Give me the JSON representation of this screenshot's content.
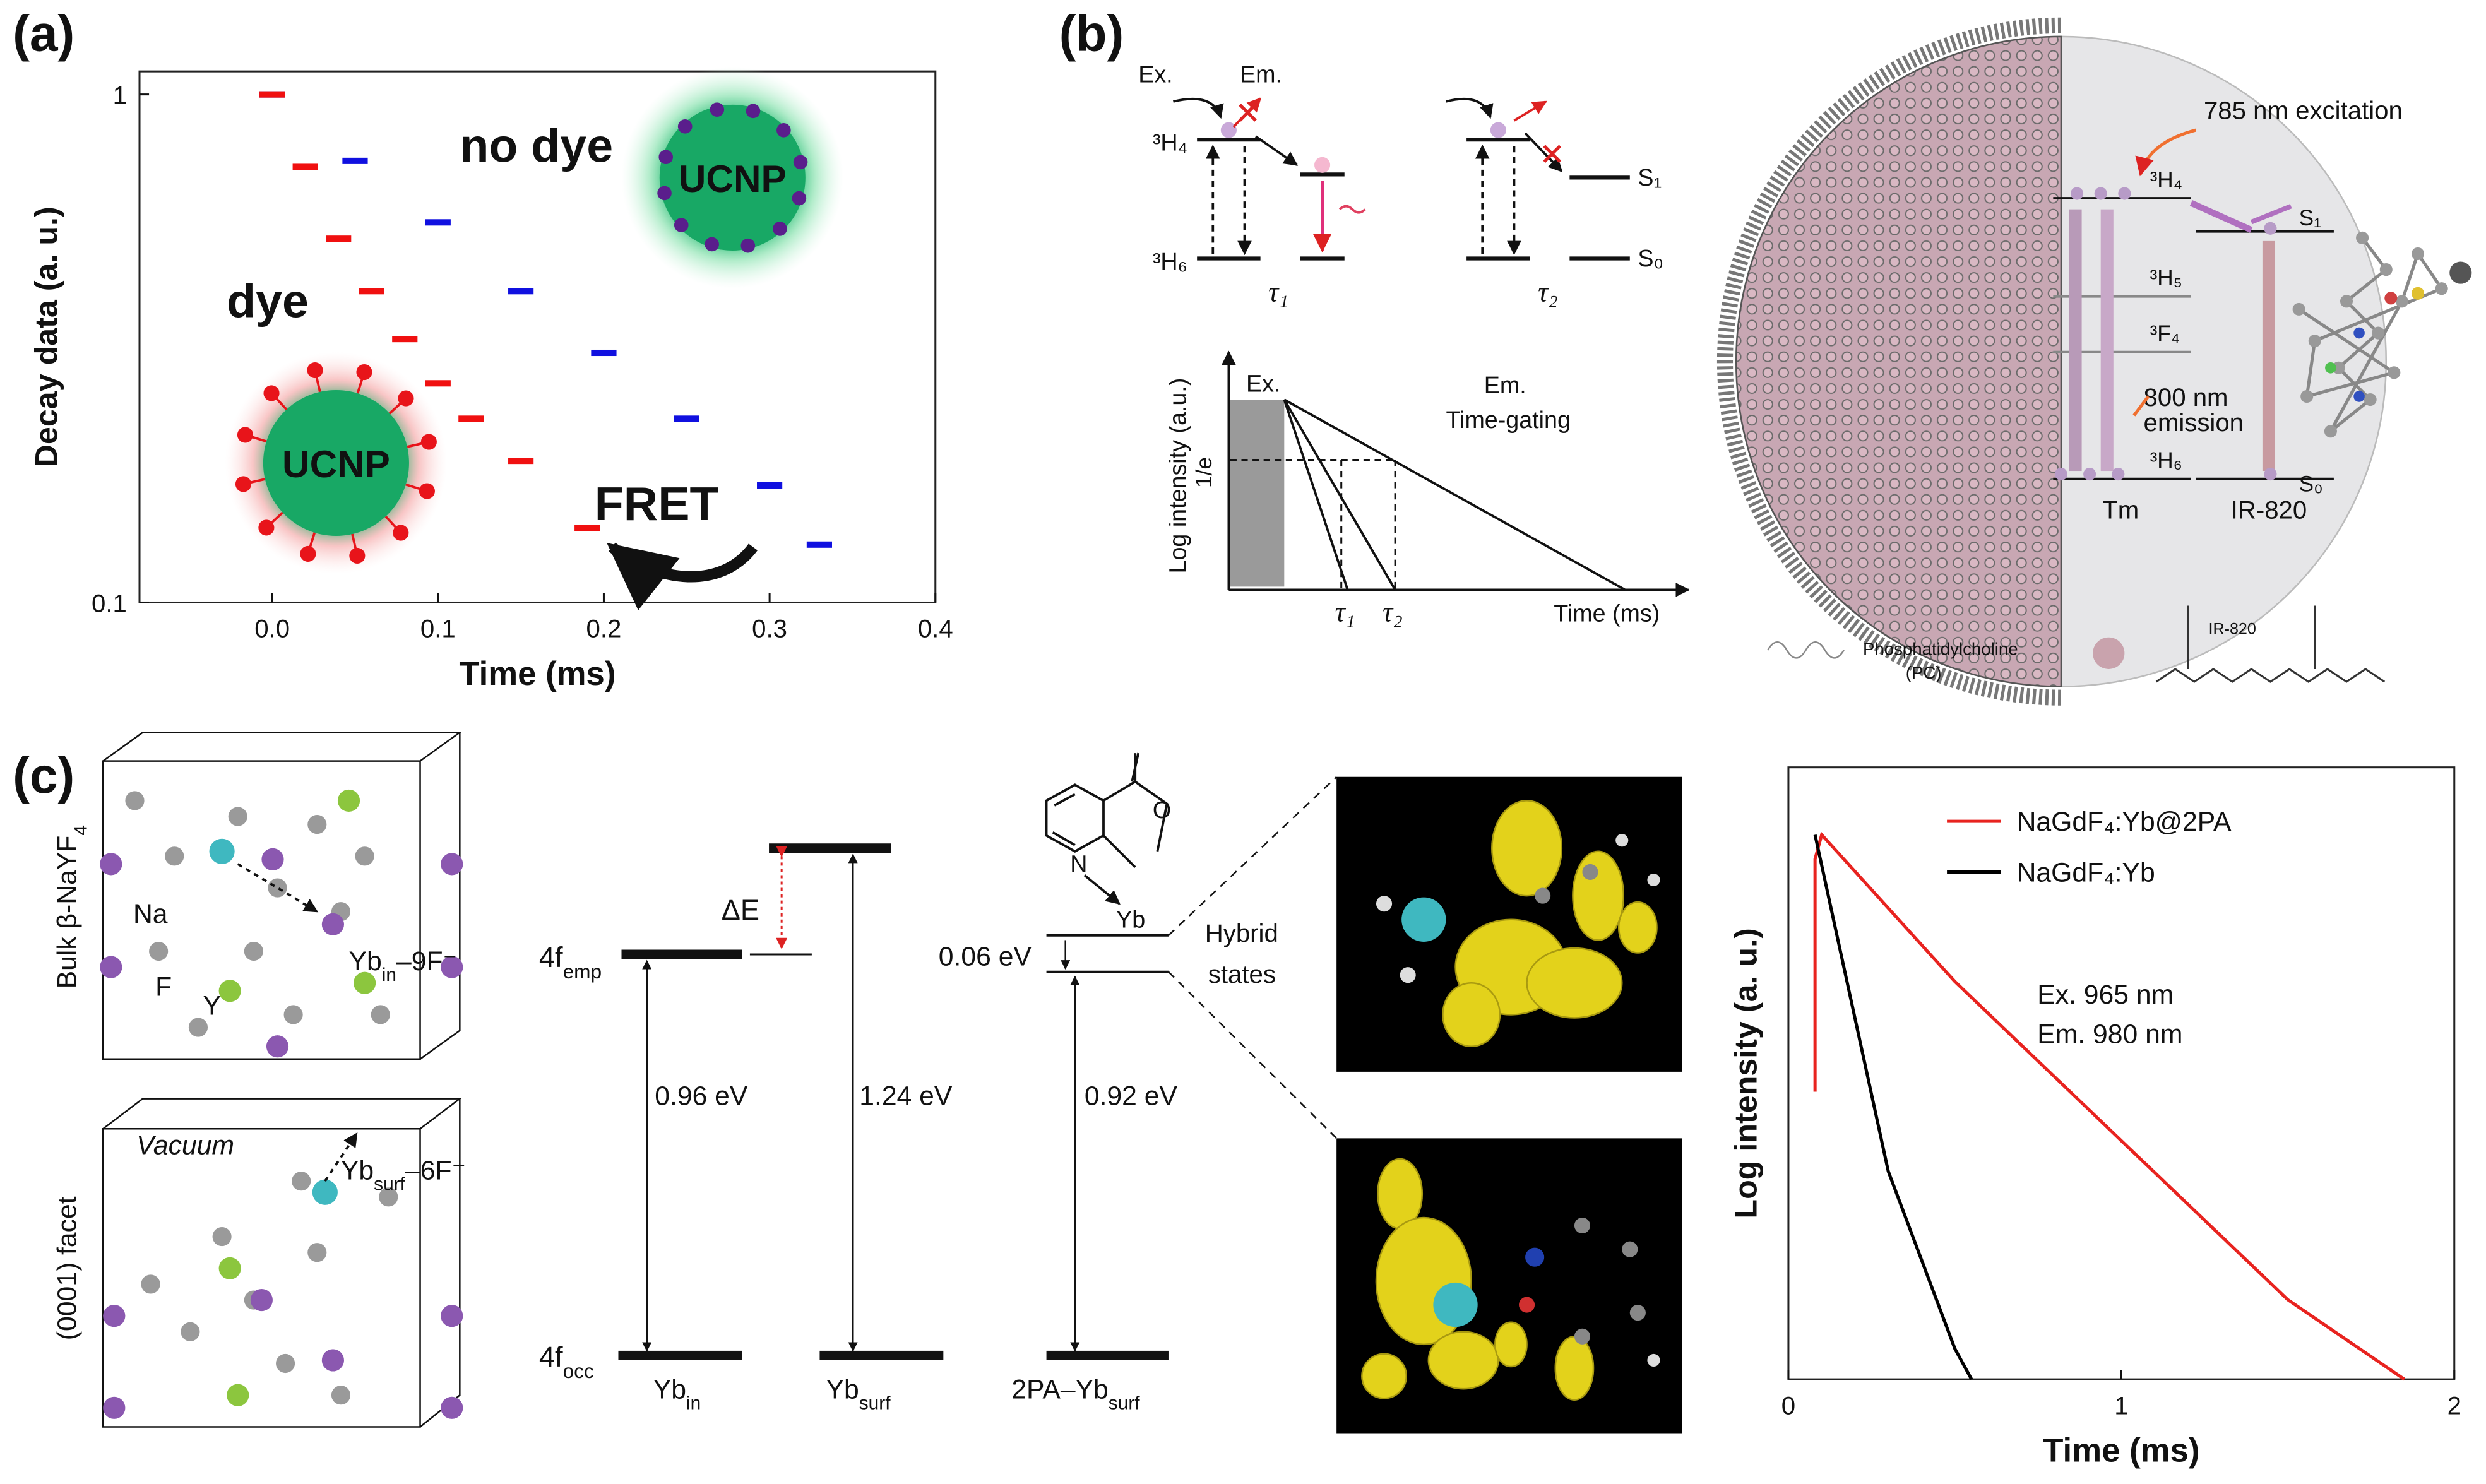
{
  "panel_labels": [
    "(a)",
    "(b)",
    "(c)"
  ],
  "chart_data": [
    {
      "type": "scatter",
      "xlabel": "Time (ms)",
      "ylabel": "Decay data (a. u.)",
      "log_y": true,
      "xlim": [
        -0.08,
        0.4
      ],
      "ylim": [
        0.1,
        1.11
      ],
      "xticks": [
        {
          "value": 0,
          "label": "0.0"
        },
        0.1,
        0.2,
        0.3,
        0.4
      ],
      "yticks": [
        0.1,
        1
      ],
      "series": [
        {
          "name": "no dye",
          "color": "#1010e0",
          "x": [
            0,
            0.05,
            0.1,
            0.15,
            0.2,
            0.25,
            0.3,
            0.33
          ],
          "values": [
            1.0,
            0.74,
            0.56,
            0.41,
            0.31,
            0.23,
            0.17,
            0.13
          ]
        },
        {
          "name": "dye",
          "color": "#f01010",
          "x": [
            0,
            0.02,
            0.04,
            0.06,
            0.08,
            0.1,
            0.12,
            0.15,
            0.19
          ],
          "values": [
            1.0,
            0.72,
            0.52,
            0.41,
            0.33,
            0.27,
            0.23,
            0.19,
            0.14
          ]
        }
      ],
      "annotations": [
        "UCNP",
        "UCNP",
        "FRET"
      ]
    },
    {
      "type": "line",
      "xlabel": "Time (ms)",
      "ylabel": "Log intensity (a. u.)",
      "xlim": [
        0,
        2
      ],
      "ylim": [
        0,
        1
      ],
      "xticks": [
        0,
        1,
        2
      ],
      "legend": "upper right",
      "series": [
        {
          "name": "NaGdF₄:Yb@2PA",
          "color": "#e8231f",
          "x": [
            0.08,
            0.08,
            0.1,
            0.5,
            1.0,
            1.5,
            1.85
          ],
          "values": [
            0.47,
            0.85,
            0.89,
            0.65,
            0.39,
            0.13,
            0.0
          ]
        },
        {
          "name": "NaGdF₄:Yb",
          "color": "#000000",
          "x": [
            0.08,
            0.1,
            0.3,
            0.5,
            0.55
          ],
          "values": [
            0.89,
            0.84,
            0.34,
            0.05,
            0.0
          ]
        }
      ],
      "annotations": [
        "Ex.  965 nm",
        "Em. 980 nm"
      ]
    }
  ],
  "panel_b": {
    "ex": "Ex.",
    "em": "Em.",
    "h4": "³H₄",
    "h6": "³H₆",
    "tau1": "τ₁",
    "tau2": "τ₂",
    "s1": "S₁",
    "s0": "S₀",
    "plot": {
      "ex": "Ex.",
      "em": "Em.",
      "gating": "Time-gating",
      "one_over_e": "1/e",
      "ylabel": "Log intensity (a.u.)",
      "xlabel": "Time (ms)",
      "tau1": "τ₁",
      "tau2": "τ₂"
    },
    "right": {
      "excitation": "785 nm excitation",
      "h4": "³H₄",
      "h5": "³H₅",
      "f4": "³F₄",
      "h6": "³H₆",
      "emission": [
        "800 nm",
        "emission"
      ],
      "s1": "S₁",
      "s0": "S₀",
      "tm": "Tm",
      "dye": "IR-820",
      "pc": [
        "Phosphatidylcholine",
        "(PC)"
      ],
      "dye_structure": "IR-820"
    }
  },
  "panel_c": {
    "crystal": {
      "bulk": {
        "main": "Bulk β-NaYF",
        "sub": "4"
      },
      "na": "Na",
      "f": "F",
      "y": "Y",
      "yb_in": {
        "main": "Yb",
        "sub": "in",
        "after": "–9F⁻"
      },
      "vacuum": "Vacuum",
      "yb_surf": {
        "main": "Yb",
        "sub": "surf",
        "after": "–6F⁻"
      },
      "facet": "(0001) facet"
    },
    "levels": {
      "emp": {
        "main": "4f",
        "sub": "emp"
      },
      "occ": {
        "main": "4f",
        "sub": "occ"
      },
      "delta": "ΔE",
      "gap_in": "0.96 eV",
      "gap_surf": "1.24 eV",
      "gap_2pa": "0.92 eV",
      "split": "0.06 eV",
      "yb": "Yb",
      "n": "N",
      "o": "O",
      "hybrid": [
        "Hybrid",
        "states"
      ],
      "yb_in": {
        "main": "Yb",
        "sub": "in"
      },
      "yb_surf": {
        "main": "Yb",
        "sub": "surf"
      },
      "pa_yb": {
        "main": "2PA–Yb",
        "sub": "surf"
      }
    }
  }
}
